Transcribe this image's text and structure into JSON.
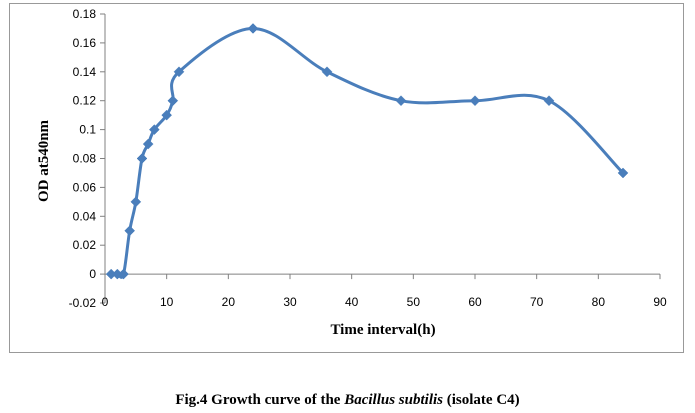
{
  "chart_data": {
    "type": "line",
    "title": "",
    "xlabel": "Time interval(h)",
    "ylabel": "OD at540nm",
    "xlim": [
      0,
      90
    ],
    "ylim": [
      -0.02,
      0.18
    ],
    "x_ticks": [
      "0",
      "10",
      "20",
      "30",
      "40",
      "50",
      "60",
      "70",
      "80",
      "90"
    ],
    "y_ticks": [
      "-0.02",
      "0",
      "0.02",
      "0.04",
      "0.06",
      "0.08",
      "0.1",
      "0.12",
      "0.14",
      "0.16",
      "0.18"
    ],
    "series": [
      {
        "name": "Bacillus subtilis (isolate C4)",
        "color": "#4a7ebb",
        "marker": "diamond",
        "smooth": true,
        "x": [
          1,
          2,
          3,
          4,
          5,
          6,
          7,
          8,
          10,
          11,
          12,
          24,
          36,
          48,
          60,
          72,
          84
        ],
        "y": [
          0,
          0,
          0,
          0.03,
          0.05,
          0.08,
          0.09,
          0.1,
          0.11,
          0.12,
          0.14,
          0.17,
          0.14,
          0.12,
          0.12,
          0.12,
          0.07
        ]
      }
    ]
  },
  "caption": {
    "prefix": "Fig.4 Growth curve of the ",
    "species": "Bacillus subtilis",
    "suffix": " (isolate C4)"
  }
}
